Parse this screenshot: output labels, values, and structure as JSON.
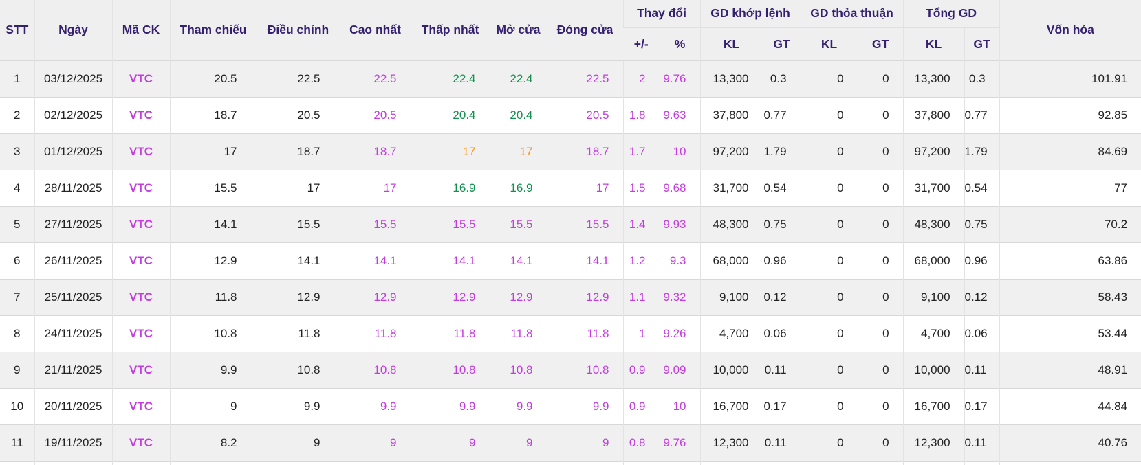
{
  "ticker": "VTC",
  "colors": {
    "ceiling_price": "#c43ce0",
    "up_price": "#11904e",
    "reference_price": "#f7941d",
    "header_text": "#35206f",
    "body_text": "#222222"
  },
  "header": {
    "stt": "STT",
    "ngay": "Ngày",
    "ma_ck": "Mã CK",
    "tham_chieu": "Tham chiếu",
    "dieu_chinh": "Điều chỉnh",
    "cao_nhat": "Cao nhất",
    "thap_nhat": "Thấp nhất",
    "mo_cua": "Mở cửa",
    "dong_cua": "Đóng cửa",
    "thay_doi": "Thay đổi",
    "plus_minus": "+/-",
    "percent": "%",
    "gd_khop_lenh": "GD khớp lệnh",
    "gd_thoa_thuan": "GD thỏa thuận",
    "tong_gd": "Tổng GD",
    "kl": "KL",
    "gt": "GT",
    "von_hoa": "Vốn hóa"
  },
  "rows": [
    {
      "values": [
        "1",
        "03/12/2025",
        "VTC",
        "20.5",
        "22.5",
        "22.5",
        "22.4",
        "22.4",
        "22.5",
        "2",
        "9.76",
        "13,300",
        "0.3",
        "0",
        "0",
        "13,300",
        "0.3",
        "101.91"
      ],
      "colors": [
        "k",
        "k",
        "m",
        "k",
        "k",
        "m",
        "g",
        "g",
        "m",
        "m",
        "m",
        "k",
        "k",
        "k",
        "k",
        "k",
        "k",
        "k"
      ]
    },
    {
      "values": [
        "2",
        "02/12/2025",
        "VTC",
        "18.7",
        "20.5",
        "20.5",
        "20.4",
        "20.4",
        "20.5",
        "1.8",
        "9.63",
        "37,800",
        "0.77",
        "0",
        "0",
        "37,800",
        "0.77",
        "92.85"
      ],
      "colors": [
        "k",
        "k",
        "m",
        "k",
        "k",
        "m",
        "g",
        "g",
        "m",
        "m",
        "m",
        "k",
        "k",
        "k",
        "k",
        "k",
        "k",
        "k"
      ]
    },
    {
      "values": [
        "3",
        "01/12/2025",
        "VTC",
        "17",
        "18.7",
        "18.7",
        "17",
        "17",
        "18.7",
        "1.7",
        "10",
        "97,200",
        "1.79",
        "0",
        "0",
        "97,200",
        "1.79",
        "84.69"
      ],
      "colors": [
        "k",
        "k",
        "m",
        "k",
        "k",
        "m",
        "o",
        "o",
        "m",
        "m",
        "m",
        "k",
        "k",
        "k",
        "k",
        "k",
        "k",
        "k"
      ]
    },
    {
      "values": [
        "4",
        "28/11/2025",
        "VTC",
        "15.5",
        "17",
        "17",
        "16.9",
        "16.9",
        "17",
        "1.5",
        "9.68",
        "31,700",
        "0.54",
        "0",
        "0",
        "31,700",
        "0.54",
        "77"
      ],
      "colors": [
        "k",
        "k",
        "m",
        "k",
        "k",
        "m",
        "g",
        "g",
        "m",
        "m",
        "m",
        "k",
        "k",
        "k",
        "k",
        "k",
        "k",
        "k"
      ]
    },
    {
      "values": [
        "5",
        "27/11/2025",
        "VTC",
        "14.1",
        "15.5",
        "15.5",
        "15.5",
        "15.5",
        "15.5",
        "1.4",
        "9.93",
        "48,300",
        "0.75",
        "0",
        "0",
        "48,300",
        "0.75",
        "70.2"
      ],
      "colors": [
        "k",
        "k",
        "m",
        "k",
        "k",
        "m",
        "m",
        "m",
        "m",
        "m",
        "m",
        "k",
        "k",
        "k",
        "k",
        "k",
        "k",
        "k"
      ]
    },
    {
      "values": [
        "6",
        "26/11/2025",
        "VTC",
        "12.9",
        "14.1",
        "14.1",
        "14.1",
        "14.1",
        "14.1",
        "1.2",
        "9.3",
        "68,000",
        "0.96",
        "0",
        "0",
        "68,000",
        "0.96",
        "63.86"
      ],
      "colors": [
        "k",
        "k",
        "m",
        "k",
        "k",
        "m",
        "m",
        "m",
        "m",
        "m",
        "m",
        "k",
        "k",
        "k",
        "k",
        "k",
        "k",
        "k"
      ]
    },
    {
      "values": [
        "7",
        "25/11/2025",
        "VTC",
        "11.8",
        "12.9",
        "12.9",
        "12.9",
        "12.9",
        "12.9",
        "1.1",
        "9.32",
        "9,100",
        "0.12",
        "0",
        "0",
        "9,100",
        "0.12",
        "58.43"
      ],
      "colors": [
        "k",
        "k",
        "m",
        "k",
        "k",
        "m",
        "m",
        "m",
        "m",
        "m",
        "m",
        "k",
        "k",
        "k",
        "k",
        "k",
        "k",
        "k"
      ]
    },
    {
      "values": [
        "8",
        "24/11/2025",
        "VTC",
        "10.8",
        "11.8",
        "11.8",
        "11.8",
        "11.8",
        "11.8",
        "1",
        "9.26",
        "4,700",
        "0.06",
        "0",
        "0",
        "4,700",
        "0.06",
        "53.44"
      ],
      "colors": [
        "k",
        "k",
        "m",
        "k",
        "k",
        "m",
        "m",
        "m",
        "m",
        "m",
        "m",
        "k",
        "k",
        "k",
        "k",
        "k",
        "k",
        "k"
      ]
    },
    {
      "values": [
        "9",
        "21/11/2025",
        "VTC",
        "9.9",
        "10.8",
        "10.8",
        "10.8",
        "10.8",
        "10.8",
        "0.9",
        "9.09",
        "10,000",
        "0.11",
        "0",
        "0",
        "10,000",
        "0.11",
        "48.91"
      ],
      "colors": [
        "k",
        "k",
        "m",
        "k",
        "k",
        "m",
        "m",
        "m",
        "m",
        "m",
        "m",
        "k",
        "k",
        "k",
        "k",
        "k",
        "k",
        "k"
      ]
    },
    {
      "values": [
        "10",
        "20/11/2025",
        "VTC",
        "9",
        "9.9",
        "9.9",
        "9.9",
        "9.9",
        "9.9",
        "0.9",
        "10",
        "16,700",
        "0.17",
        "0",
        "0",
        "16,700",
        "0.17",
        "44.84"
      ],
      "colors": [
        "k",
        "k",
        "m",
        "k",
        "k",
        "m",
        "m",
        "m",
        "m",
        "m",
        "m",
        "k",
        "k",
        "k",
        "k",
        "k",
        "k",
        "k"
      ]
    },
    {
      "values": [
        "11",
        "19/11/2025",
        "VTC",
        "8.2",
        "9",
        "9",
        "9",
        "9",
        "9",
        "0.8",
        "9.76",
        "12,300",
        "0.11",
        "0",
        "0",
        "12,300",
        "0.11",
        "40.76"
      ],
      "colors": [
        "k",
        "k",
        "m",
        "k",
        "k",
        "m",
        "m",
        "m",
        "m",
        "m",
        "m",
        "k",
        "k",
        "k",
        "k",
        "k",
        "k",
        "k"
      ]
    }
  ]
}
